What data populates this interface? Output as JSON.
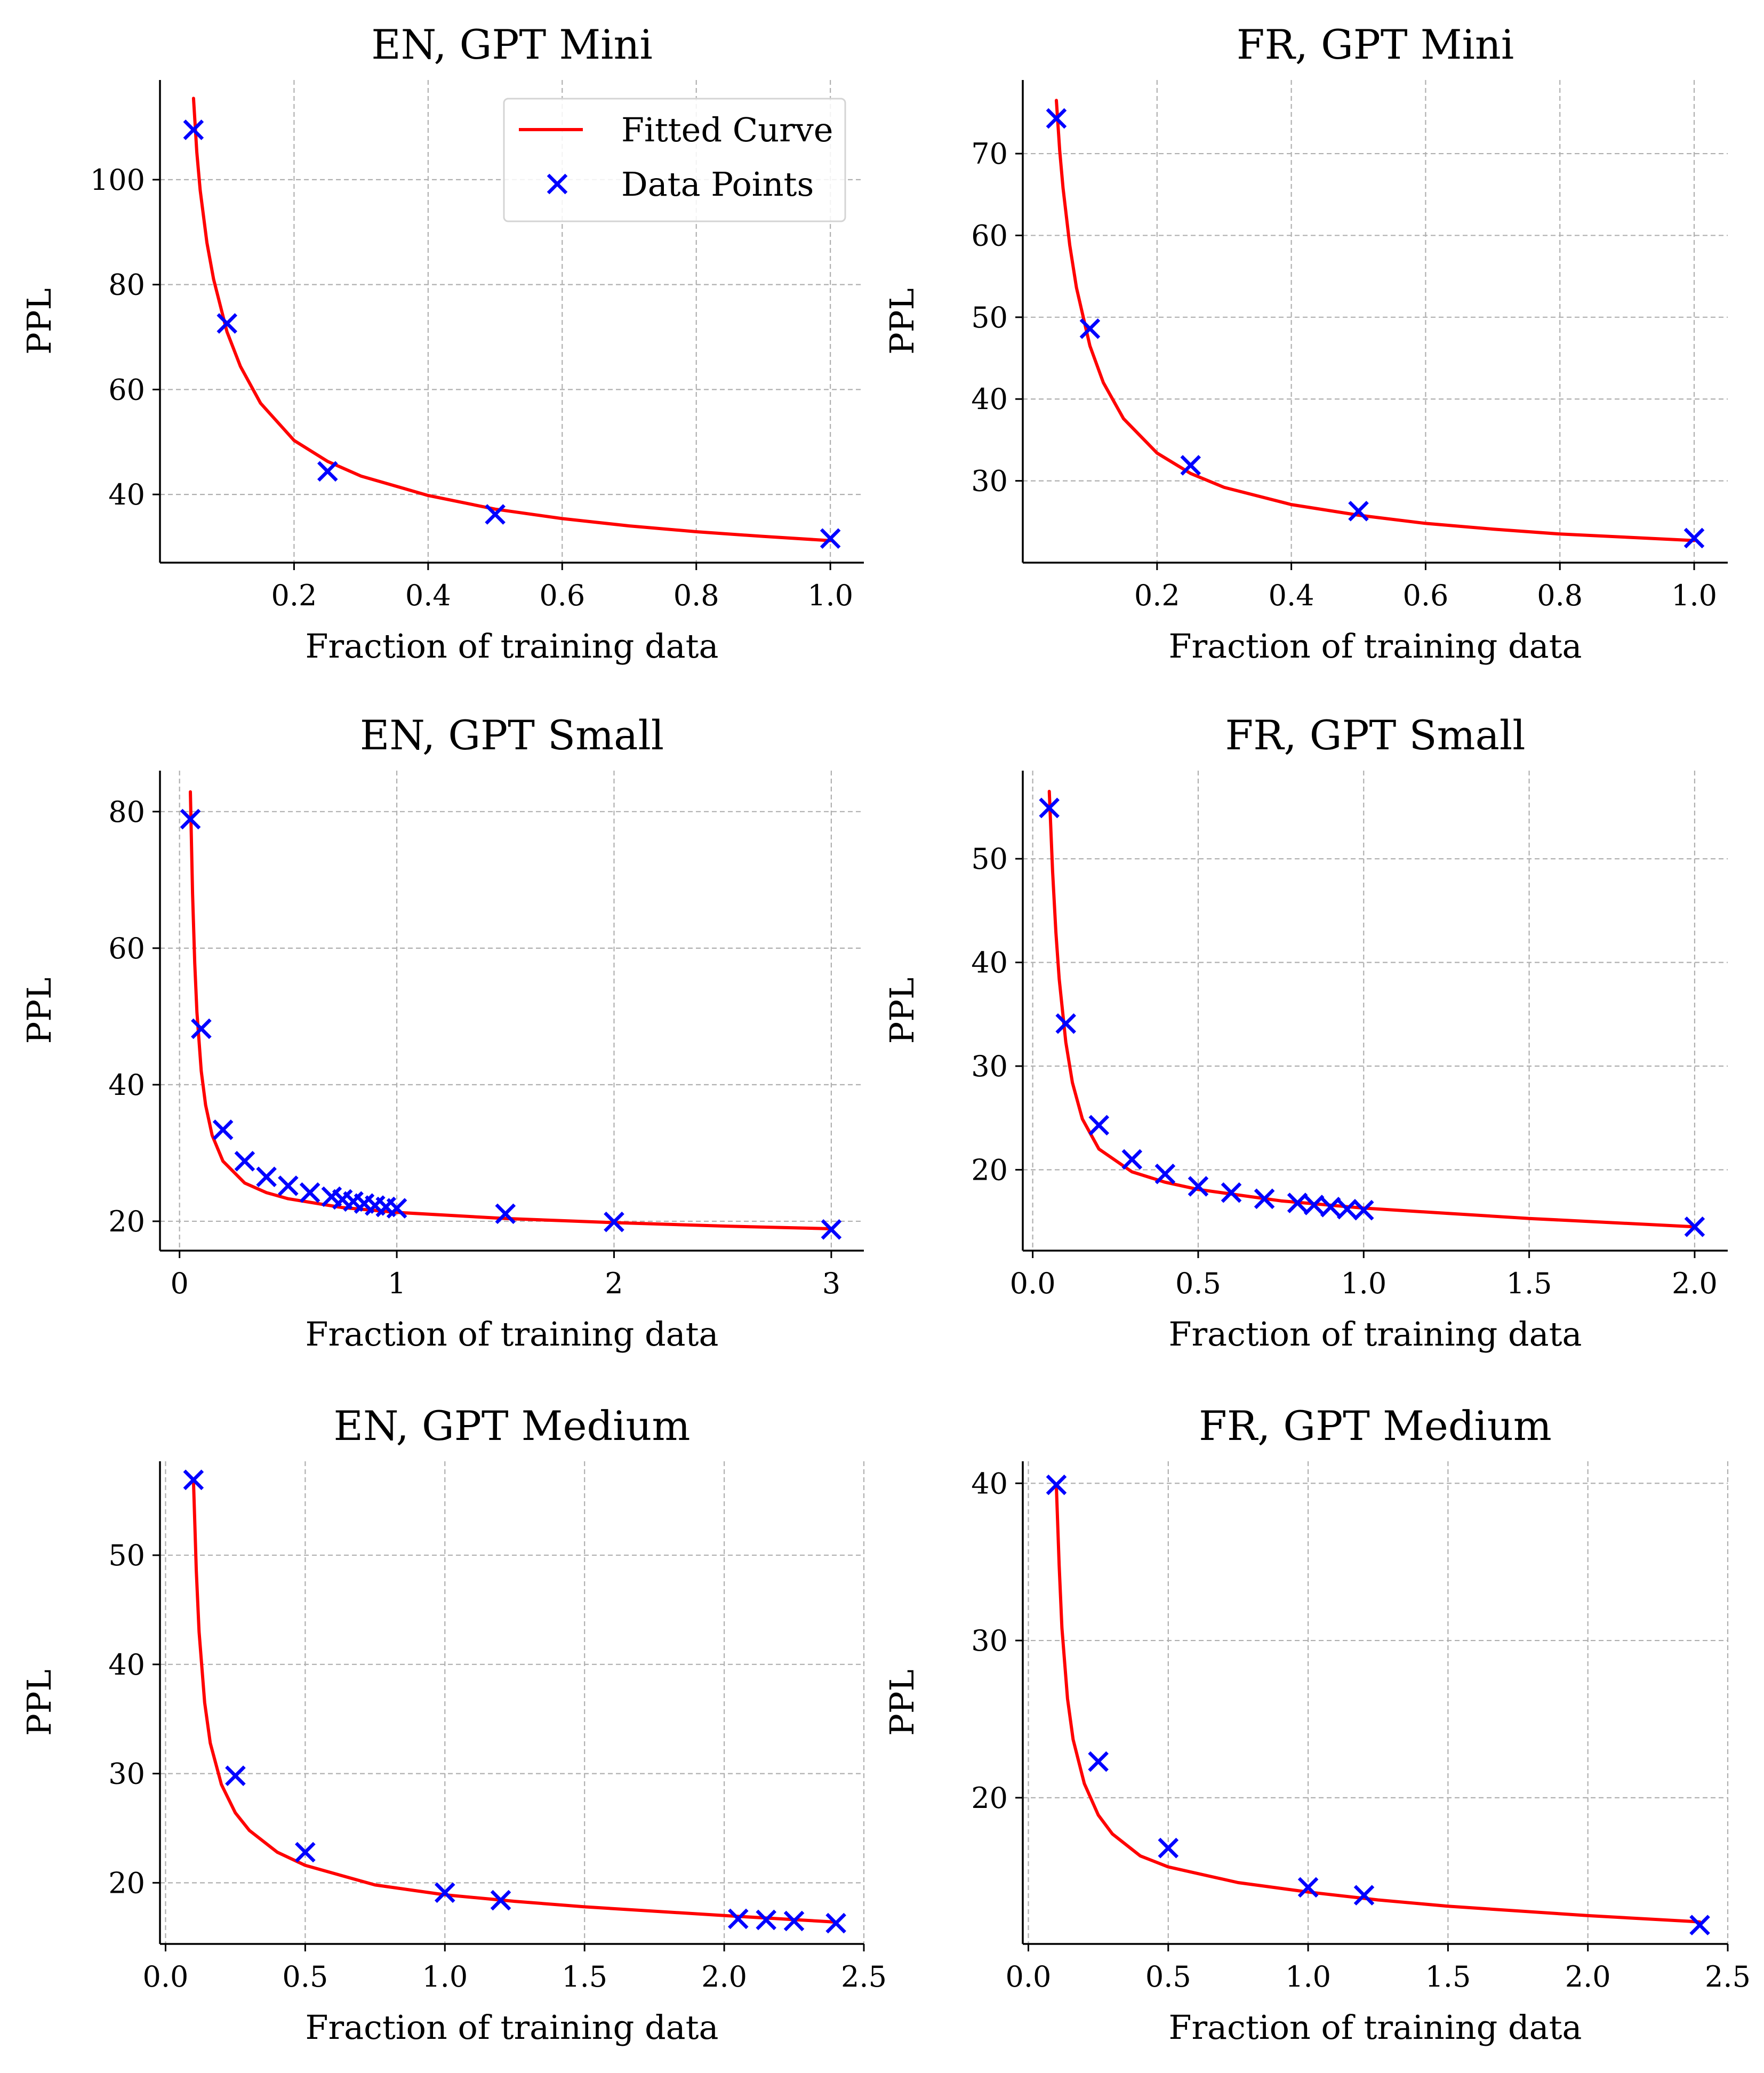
{
  "colors": {
    "curve": "#ff0000",
    "points": "#0000ff",
    "grid": "#b0b0b0",
    "axis": "#000000"
  },
  "legend": {
    "placement": "upper-right",
    "panel": 0,
    "entries": [
      "Fitted Curve",
      "Data Points"
    ]
  },
  "chart_data": [
    {
      "type": "scatter",
      "title": "EN, GPT Mini",
      "xlabel": "Fraction of training data",
      "ylabel": "PPL",
      "xlim": [
        0.0,
        1.05
      ],
      "ylim": [
        27,
        119
      ],
      "xticks": [
        0.2,
        0.4,
        0.6,
        0.8,
        1.0
      ],
      "yticks": [
        40,
        60,
        80,
        100
      ],
      "x_decimals": 1,
      "grid": true,
      "series": [
        {
          "name": "Data Points",
          "marker": "x",
          "x": [
            0.05,
            0.1,
            0.25,
            0.5,
            1.0
          ],
          "y": [
            109.5,
            72.6,
            44.4,
            36.2,
            31.6
          ]
        },
        {
          "name": "Fitted Curve",
          "kind": "line",
          "x": [
            0.05,
            0.055,
            0.06,
            0.07,
            0.08,
            0.1,
            0.12,
            0.15,
            0.2,
            0.25,
            0.3,
            0.4,
            0.5,
            0.6,
            0.7,
            0.8,
            0.9,
            1.0
          ],
          "y": [
            115.5,
            105.2,
            98.0,
            88.0,
            81.0,
            71.0,
            64.4,
            57.4,
            50.3,
            46.3,
            43.5,
            39.8,
            37.2,
            35.4,
            34.0,
            32.9,
            32.0,
            31.2
          ]
        }
      ]
    },
    {
      "type": "scatter",
      "title": "FR, GPT Mini",
      "xlabel": "Fraction of training data",
      "ylabel": "PPL",
      "xlim": [
        0.0,
        1.05
      ],
      "ylim": [
        20,
        79
      ],
      "xticks": [
        0.2,
        0.4,
        0.6,
        0.8,
        1.0
      ],
      "yticks": [
        30,
        40,
        50,
        60,
        70
      ],
      "x_decimals": 1,
      "grid": true,
      "series": [
        {
          "name": "Data Points",
          "marker": "x",
          "x": [
            0.05,
            0.1,
            0.25,
            0.5,
            1.0
          ],
          "y": [
            74.3,
            48.6,
            31.9,
            26.3,
            23.0
          ]
        },
        {
          "name": "Fitted Curve",
          "kind": "line",
          "x": [
            0.05,
            0.055,
            0.06,
            0.07,
            0.08,
            0.1,
            0.12,
            0.15,
            0.2,
            0.25,
            0.3,
            0.4,
            0.5,
            0.6,
            0.7,
            0.8,
            0.9,
            1.0
          ],
          "y": [
            76.5,
            70.4,
            65.8,
            58.8,
            53.6,
            46.5,
            42.0,
            37.6,
            33.4,
            30.9,
            29.2,
            27.1,
            25.8,
            24.8,
            24.1,
            23.5,
            23.1,
            22.7
          ]
        }
      ]
    },
    {
      "type": "scatter",
      "title": "EN, GPT Small",
      "xlabel": "Fraction of training data",
      "ylabel": "PPL",
      "xlim": [
        -0.09,
        3.15
      ],
      "ylim": [
        15.7,
        86
      ],
      "xticks": [
        0,
        1,
        2,
        3
      ],
      "yticks": [
        20,
        40,
        60,
        80
      ],
      "x_decimals": 0,
      "grid": true,
      "series": [
        {
          "name": "Data Points",
          "marker": "x",
          "x": [
            0.05,
            0.1,
            0.2,
            0.3,
            0.4,
            0.5,
            0.6,
            0.7,
            0.75,
            0.8,
            0.85,
            0.9,
            0.95,
            1.0,
            1.5,
            2.0,
            3.0
          ],
          "y": [
            78.9,
            48.2,
            33.4,
            28.8,
            26.5,
            25.2,
            24.2,
            23.6,
            23.2,
            22.9,
            22.6,
            22.3,
            22.1,
            21.9,
            21.1,
            19.9,
            18.8
          ]
        },
        {
          "name": "Fitted Curve",
          "kind": "line",
          "x": [
            0.05,
            0.06,
            0.07,
            0.08,
            0.1,
            0.12,
            0.15,
            0.2,
            0.3,
            0.4,
            0.5,
            0.75,
            1.0,
            1.5,
            2.0,
            2.5,
            3.0
          ],
          "y": [
            82.9,
            68.0,
            57.8,
            50.6,
            42.0,
            37.0,
            32.6,
            28.8,
            25.6,
            24.2,
            23.3,
            22.0,
            21.3,
            20.4,
            19.8,
            19.3,
            18.9
          ]
        }
      ]
    },
    {
      "type": "scatter",
      "title": "FR, GPT Small",
      "xlabel": "Fraction of training data",
      "ylabel": "PPL",
      "xlim": [
        -0.03,
        2.1
      ],
      "ylim": [
        12.2,
        58.5
      ],
      "xticks": [
        0.0,
        0.5,
        1.0,
        1.5,
        2.0
      ],
      "yticks": [
        20,
        30,
        40,
        50
      ],
      "x_decimals": 1,
      "grid": true,
      "series": [
        {
          "name": "Data Points",
          "marker": "x",
          "x": [
            0.05,
            0.1,
            0.2,
            0.3,
            0.4,
            0.5,
            0.6,
            0.7,
            0.8,
            0.85,
            0.9,
            0.95,
            1.0,
            2.0
          ],
          "y": [
            54.9,
            34.1,
            24.3,
            21.0,
            19.6,
            18.4,
            17.8,
            17.2,
            16.8,
            16.6,
            16.4,
            16.2,
            16.1,
            14.5
          ]
        },
        {
          "name": "Fitted Curve",
          "kind": "line",
          "x": [
            0.05,
            0.06,
            0.07,
            0.08,
            0.1,
            0.12,
            0.15,
            0.2,
            0.3,
            0.4,
            0.5,
            0.75,
            1.0,
            1.25,
            1.5,
            2.0
          ],
          "y": [
            56.5,
            48.8,
            42.9,
            38.4,
            32.3,
            28.4,
            24.9,
            22.0,
            19.8,
            18.8,
            18.1,
            17.0,
            16.3,
            15.8,
            15.3,
            14.5
          ]
        }
      ]
    },
    {
      "type": "scatter",
      "title": "EN, GPT Medium",
      "xlabel": "Fraction of training data",
      "ylabel": "PPL",
      "xlim": [
        -0.02,
        2.5
      ],
      "ylim": [
        14.4,
        58.6
      ],
      "xticks": [
        0.0,
        0.5,
        1.0,
        1.5,
        2.0,
        2.5
      ],
      "yticks": [
        20,
        30,
        40,
        50
      ],
      "x_decimals": 1,
      "grid": true,
      "series": [
        {
          "name": "Data Points",
          "marker": "x",
          "x": [
            0.1,
            0.25,
            0.5,
            1.0,
            1.2,
            2.05,
            2.15,
            2.25,
            2.4
          ],
          "y": [
            56.9,
            29.8,
            22.8,
            19.1,
            18.4,
            16.7,
            16.6,
            16.5,
            16.3
          ]
        },
        {
          "name": "Fitted Curve",
          "kind": "line",
          "x": [
            0.1,
            0.11,
            0.12,
            0.14,
            0.16,
            0.2,
            0.25,
            0.3,
            0.4,
            0.5,
            0.75,
            1.0,
            1.25,
            1.5,
            2.0,
            2.4
          ],
          "y": [
            56.7,
            48.6,
            43.0,
            36.5,
            32.8,
            29.0,
            26.4,
            24.8,
            22.8,
            21.6,
            19.8,
            18.9,
            18.3,
            17.8,
            17.0,
            16.4
          ]
        }
      ]
    },
    {
      "type": "scatter",
      "title": "FR, GPT Medium",
      "xlabel": "Fraction of training data",
      "ylabel": "PPL",
      "xlim": [
        -0.02,
        2.5
      ],
      "ylim": [
        10.7,
        41.4
      ],
      "xticks": [
        0.0,
        0.5,
        1.0,
        1.5,
        2.0,
        2.5
      ],
      "yticks": [
        20,
        30,
        40
      ],
      "x_decimals": 1,
      "grid": true,
      "series": [
        {
          "name": "Data Points",
          "marker": "x",
          "x": [
            0.1,
            0.25,
            0.5,
            1.0,
            1.2,
            2.4
          ],
          "y": [
            39.9,
            22.3,
            16.8,
            14.3,
            13.8,
            11.9
          ]
        },
        {
          "name": "Fitted Curve",
          "kind": "line",
          "x": [
            0.1,
            0.11,
            0.12,
            0.14,
            0.16,
            0.2,
            0.25,
            0.3,
            0.4,
            0.5,
            0.75,
            1.0,
            1.25,
            1.5,
            2.0,
            2.4
          ],
          "y": [
            39.8,
            34.8,
            30.8,
            26.3,
            23.7,
            20.9,
            18.9,
            17.7,
            16.3,
            15.6,
            14.6,
            14.0,
            13.5,
            13.1,
            12.5,
            12.1
          ]
        }
      ]
    }
  ]
}
